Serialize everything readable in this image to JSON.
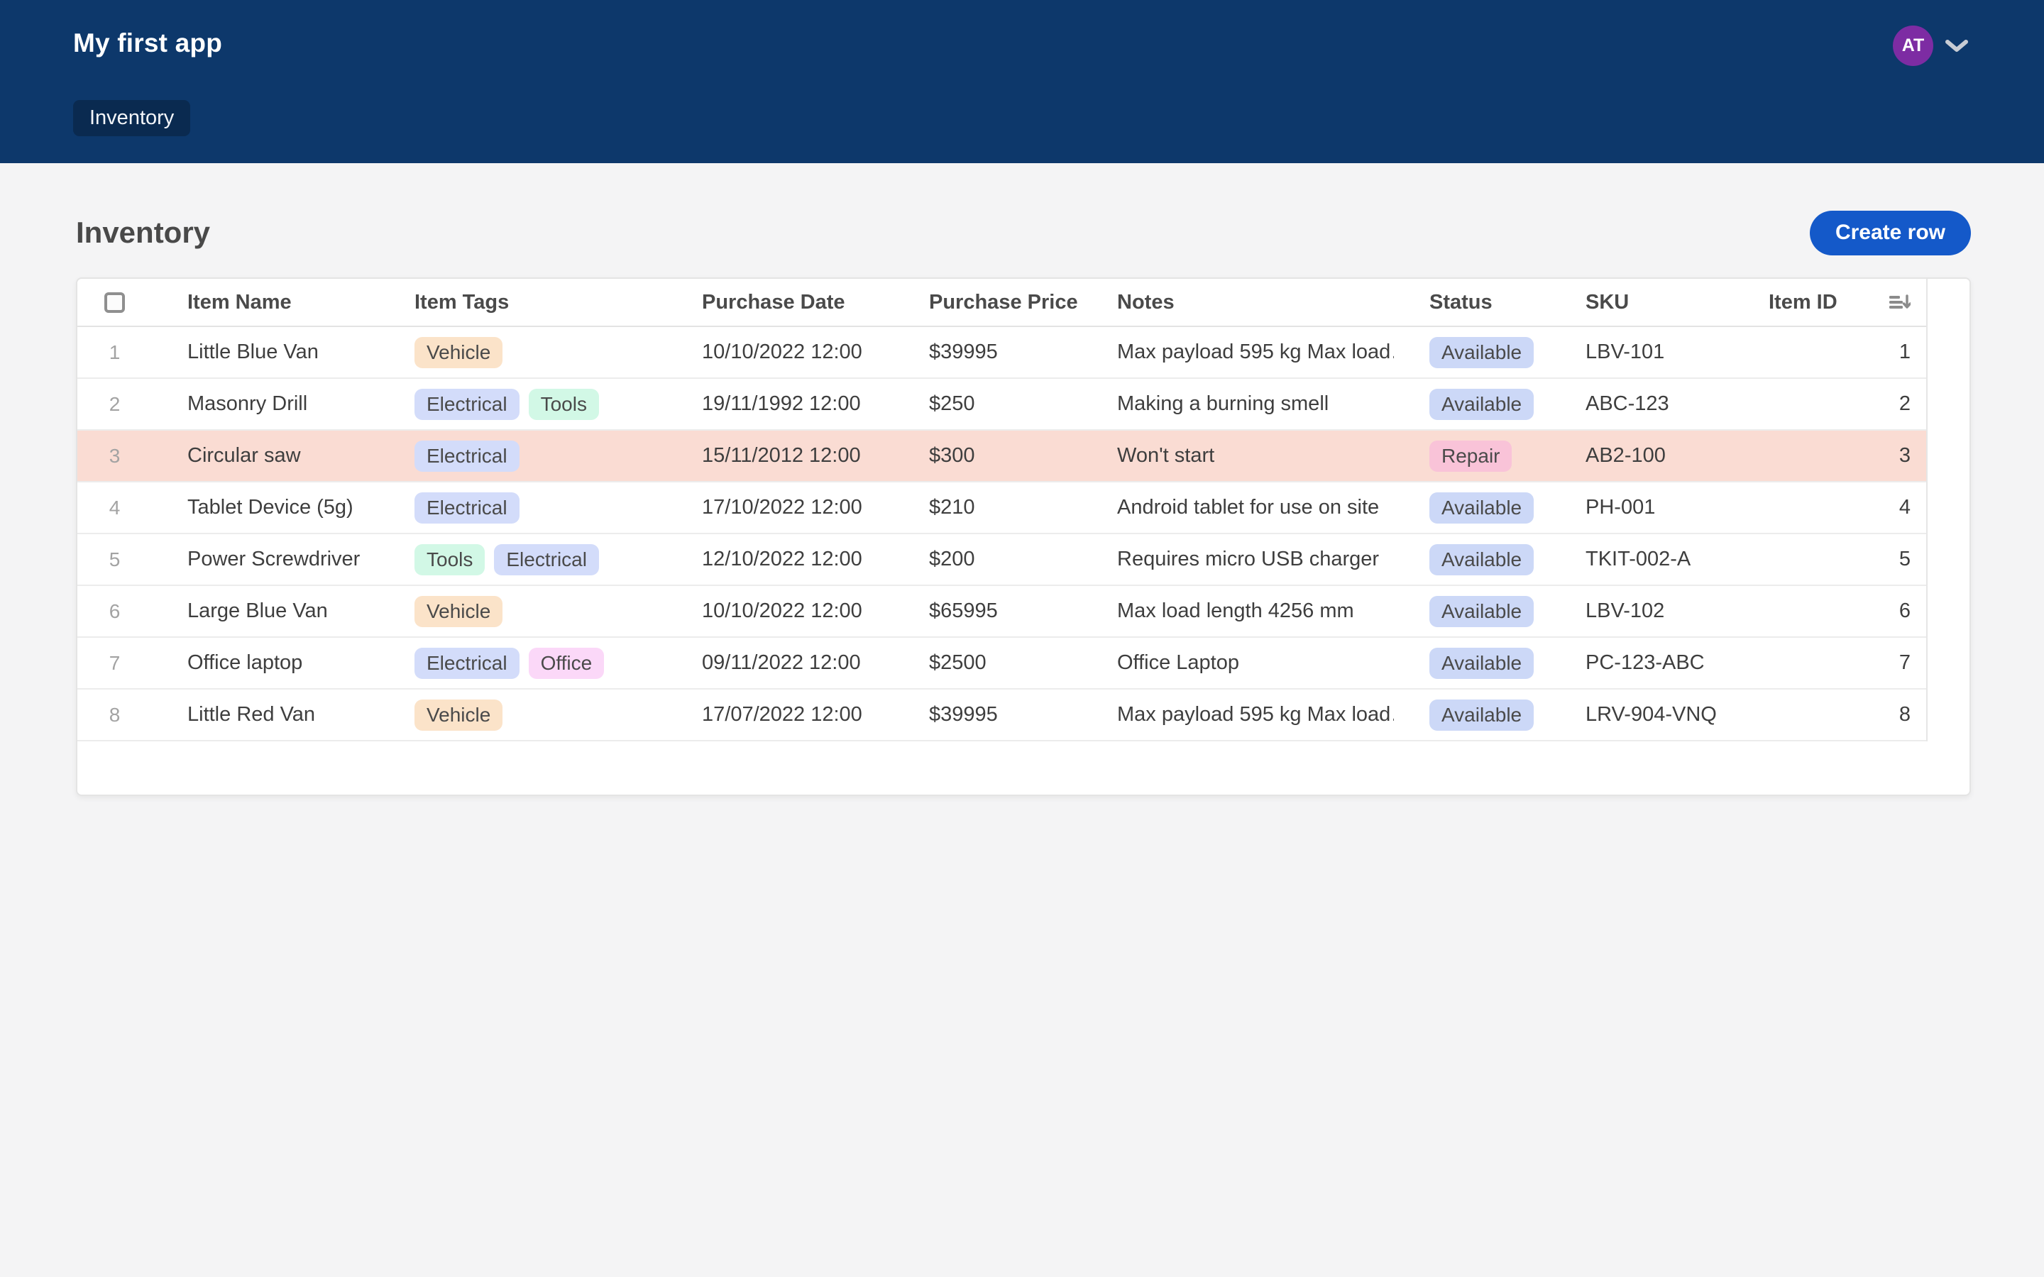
{
  "app": {
    "title": "My first app"
  },
  "nav": {
    "tab_label": "Inventory",
    "avatar_initials": "AT"
  },
  "page": {
    "title": "Inventory",
    "create_button_label": "Create row"
  },
  "table": {
    "columns": [
      "Item Name",
      "Item Tags",
      "Purchase Date",
      "Purchase Price",
      "Notes",
      "Status",
      "SKU",
      "Item ID"
    ],
    "rows": [
      {
        "num": "1",
        "name": "Little Blue Van",
        "tags": [
          {
            "label": "Vehicle",
            "type": "vehicle"
          }
        ],
        "date": "10/10/2022 12:00",
        "price": "$39995",
        "notes": "Max payload 595 kg Max load…",
        "status": {
          "label": "Available",
          "type": "available"
        },
        "sku": "LBV-101",
        "id": "1",
        "highlight": false
      },
      {
        "num": "2",
        "name": "Masonry Drill",
        "tags": [
          {
            "label": "Electrical",
            "type": "electrical"
          },
          {
            "label": "Tools",
            "type": "tools"
          }
        ],
        "date": "19/11/1992 12:00",
        "price": "$250",
        "notes": "Making a burning smell",
        "status": {
          "label": "Available",
          "type": "available"
        },
        "sku": "ABC-123",
        "id": "2",
        "highlight": false
      },
      {
        "num": "3",
        "name": "Circular saw",
        "tags": [
          {
            "label": "Electrical",
            "type": "electrical"
          }
        ],
        "date": "15/11/2012 12:00",
        "price": "$300",
        "notes": "Won't start",
        "status": {
          "label": "Repair",
          "type": "repair"
        },
        "sku": "AB2-100",
        "id": "3",
        "highlight": true
      },
      {
        "num": "4",
        "name": "Tablet Device (5g)",
        "tags": [
          {
            "label": "Electrical",
            "type": "electrical"
          }
        ],
        "date": "17/10/2022 12:00",
        "price": "$210",
        "notes": "Android tablet for use on site",
        "status": {
          "label": "Available",
          "type": "available"
        },
        "sku": "PH-001",
        "id": "4",
        "highlight": false
      },
      {
        "num": "5",
        "name": "Power Screwdriver",
        "tags": [
          {
            "label": "Tools",
            "type": "tools"
          },
          {
            "label": "Electrical",
            "type": "electrical"
          }
        ],
        "date": "12/10/2022 12:00",
        "price": "$200",
        "notes": "Requires micro USB charger",
        "status": {
          "label": "Available",
          "type": "available"
        },
        "sku": "TKIT-002-A",
        "id": "5",
        "highlight": false
      },
      {
        "num": "6",
        "name": "Large Blue Van",
        "tags": [
          {
            "label": "Vehicle",
            "type": "vehicle"
          }
        ],
        "date": "10/10/2022 12:00",
        "price": "$65995",
        "notes": "Max load length 4256 mm",
        "status": {
          "label": "Available",
          "type": "available"
        },
        "sku": "LBV-102",
        "id": "6",
        "highlight": false
      },
      {
        "num": "7",
        "name": "Office laptop",
        "tags": [
          {
            "label": "Electrical",
            "type": "electrical"
          },
          {
            "label": "Office",
            "type": "office"
          }
        ],
        "date": "09/11/2022 12:00",
        "price": "$2500",
        "notes": "Office Laptop",
        "status": {
          "label": "Available",
          "type": "available"
        },
        "sku": "PC-123-ABC",
        "id": "7",
        "highlight": false
      },
      {
        "num": "8",
        "name": "Little Red Van",
        "tags": [
          {
            "label": "Vehicle",
            "type": "vehicle"
          }
        ],
        "date": "17/07/2022 12:00",
        "price": "$39995",
        "notes": "Max payload 595 kg Max load…",
        "status": {
          "label": "Available",
          "type": "available"
        },
        "sku": "LRV-904-VNQ",
        "id": "8",
        "highlight": false
      }
    ]
  },
  "colors": {
    "navbar": "#0d386b",
    "nav_tab": "#0a2a50",
    "accent": "#1459c9",
    "avatar": "#7d2ca3",
    "highlight_row": "#fadcd3",
    "vehicle": "#fbe3c9",
    "electrical": "#d3dcfa",
    "tools": "#d2f8e6",
    "office": "#fbd8f8",
    "available": "#ccd8f7",
    "repair": "#f9c3d8"
  }
}
